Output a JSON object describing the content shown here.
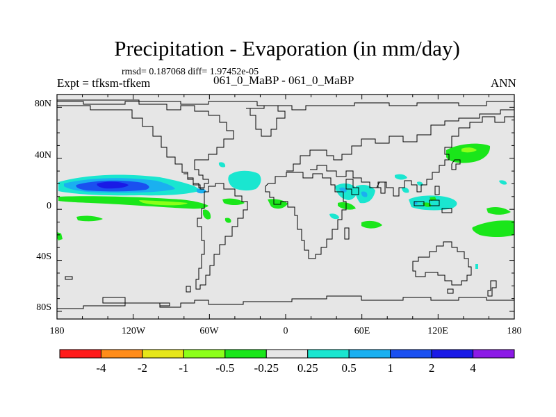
{
  "title": "Precipitation - Evaporation (in mm/day)",
  "stats": "rmsd= 0.187068 diff= 1.97452e-05",
  "left_label": "Expt = tfksm-tfkem",
  "center_label": "061_0_MaBP - 061_0_MaBP",
  "right_label": "ANN",
  "lat_labels": [
    "80N",
    "40N",
    "0",
    "40S",
    "80S"
  ],
  "lon_labels": [
    "180",
    "120W",
    "60W",
    "0",
    "60E",
    "120E",
    "180"
  ],
  "colorbar": {
    "labels": [
      "-4",
      "-2",
      "-1",
      "-0.5",
      "-0.25",
      "0.25",
      "0.5",
      "1",
      "2",
      "4"
    ],
    "colors": [
      "#ff1a1a",
      "#ff8c1a",
      "#e6e61a",
      "#8cff1a",
      "#1ae61a",
      "#e6e6e6",
      "#1ae6d0",
      "#1ab0f0",
      "#1a50f0",
      "#1a1ae6",
      "#8c1ae6"
    ]
  },
  "map_colors": {
    "background": "#e6e6e6",
    "green": "#1ae61a",
    "light_green": "#8cff1a",
    "cyan": "#1ae6d0",
    "light_blue": "#1ab0f0",
    "blue": "#1a50f0",
    "dark_blue": "#1a1ae6"
  }
}
